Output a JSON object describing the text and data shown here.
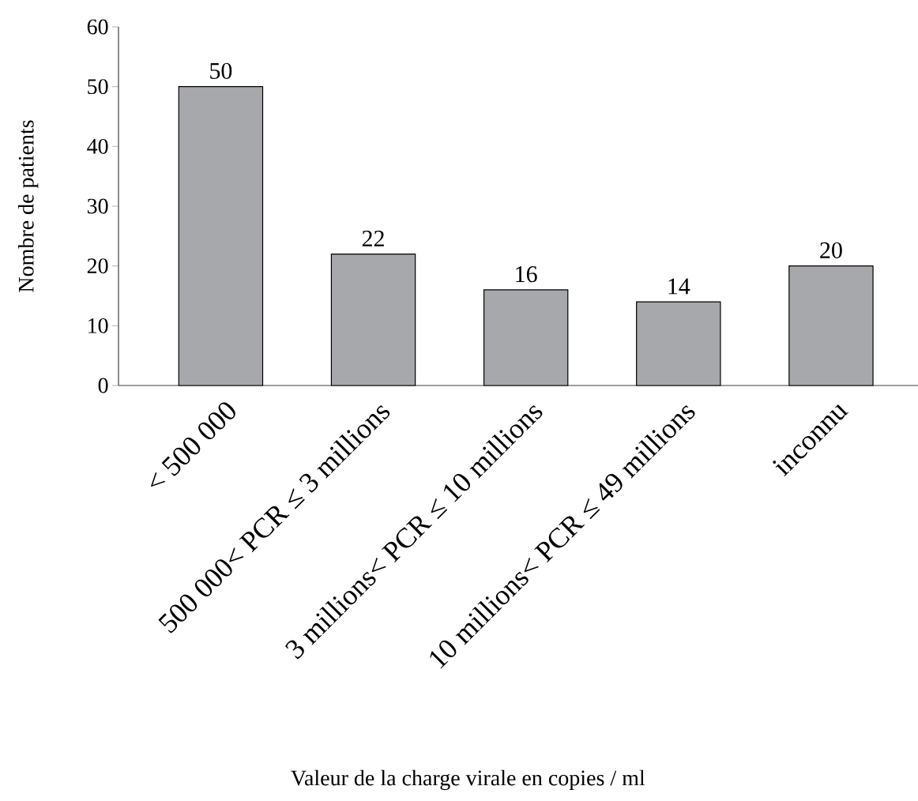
{
  "chart_data": {
    "type": "bar",
    "xlabel": "Valeur de la charge virale en copies / ml",
    "ylabel": "Nombre de patients",
    "categories": [
      "< 500 000",
      "500 000< PCR ≤ 3 millions",
      "3 millions< PCR ≤ 10 millions",
      "10 millions< PCR ≤ 49 millions",
      "inconnu"
    ],
    "values": [
      50,
      22,
      16,
      14,
      20
    ],
    "color": "#a7a8ac",
    "ylim": [
      0,
      60
    ],
    "yticks": [
      0,
      10,
      20,
      30,
      40,
      50,
      60
    ],
    "data_labels": true,
    "grid": false
  }
}
